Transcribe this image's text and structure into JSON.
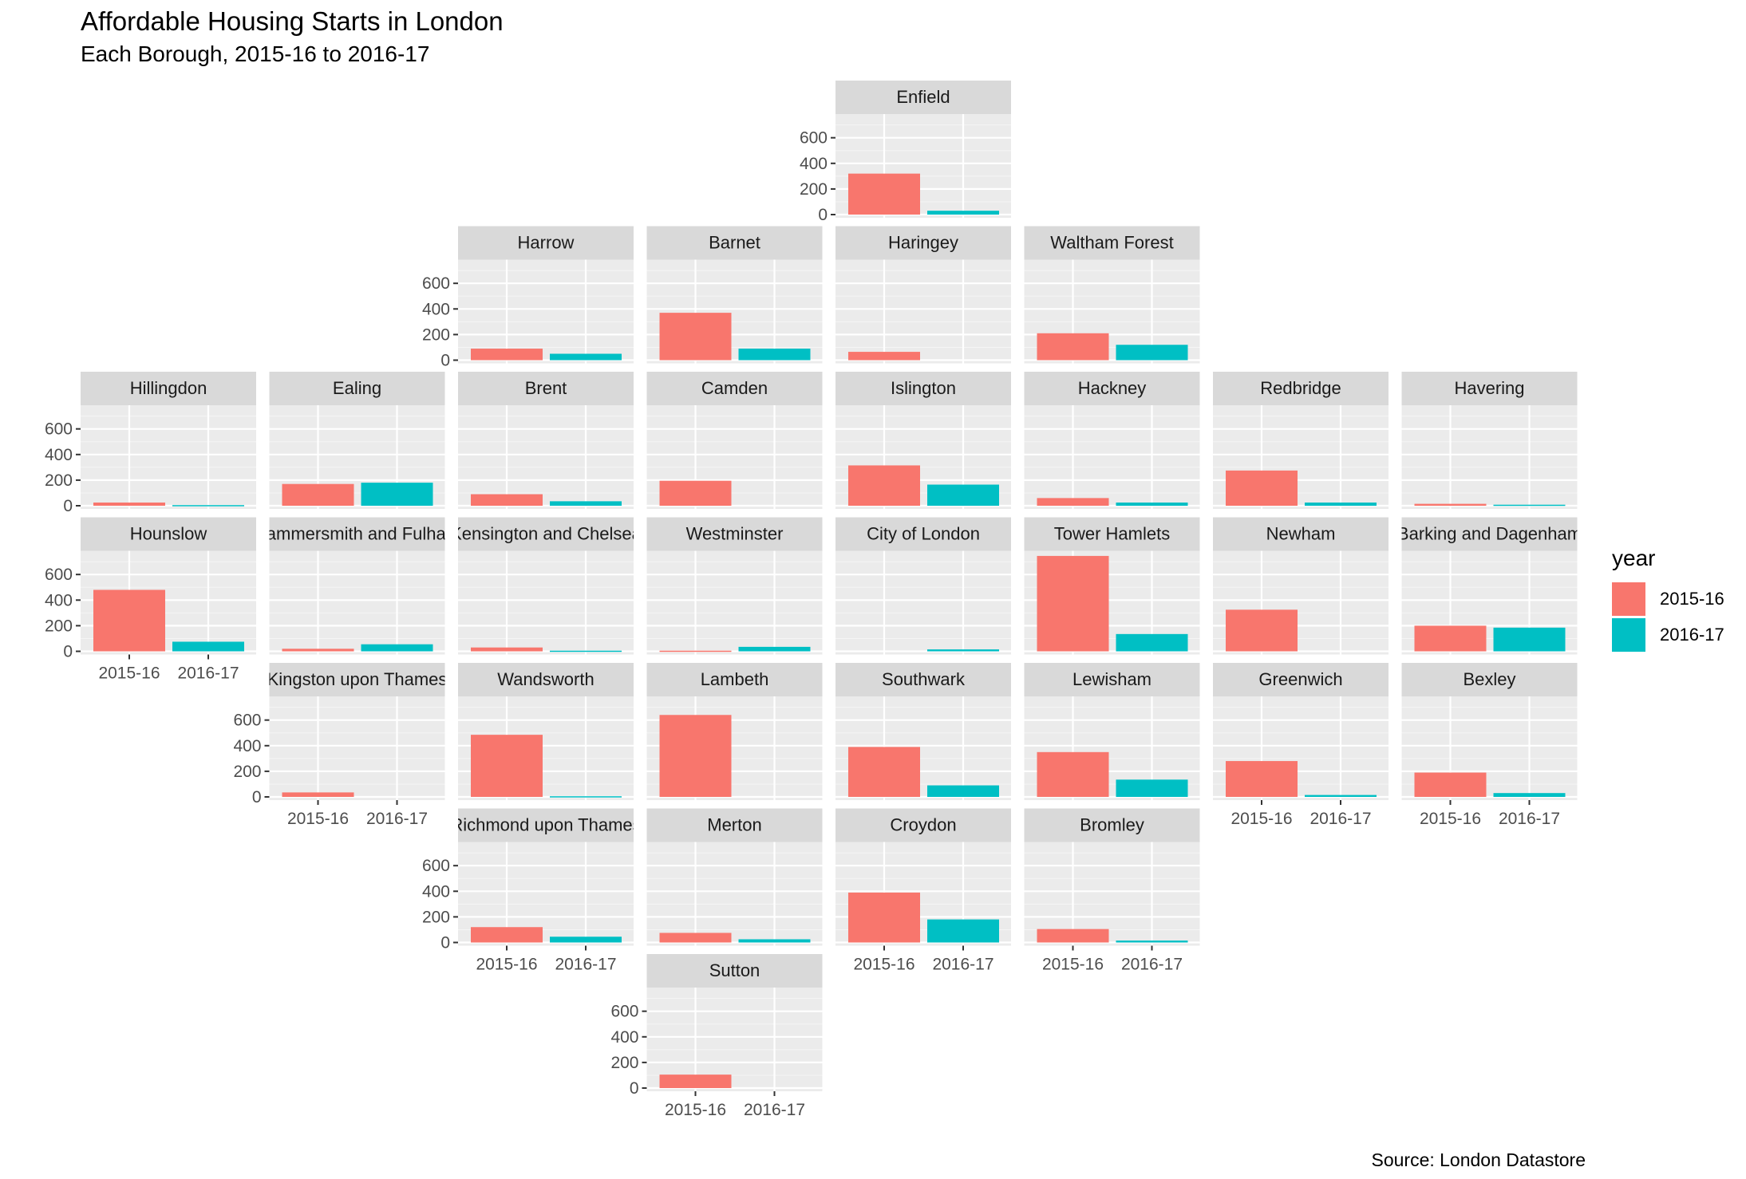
{
  "chart_data": {
    "type": "bar",
    "title": "Affordable Housing Starts in London",
    "subtitle": "Each Borough, 2015-16 to 2016-17",
    "caption": "Source: London Datastore",
    "categories": [
      "2015-16",
      "2016-17"
    ],
    "legend": {
      "title": "year",
      "position": "right",
      "items": [
        {
          "label": "2015-16",
          "color": "#F8766D"
        },
        {
          "label": "2016-17",
          "color": "#00BFC4"
        }
      ]
    },
    "ylim": [
      0,
      760
    ],
    "yticks": [
      0,
      200,
      400,
      600
    ],
    "grid": true,
    "layout": "geofacet",
    "facets": [
      {
        "name": "Enfield",
        "values": [
          320,
          30
        ]
      },
      {
        "name": "Harrow",
        "values": [
          90,
          50
        ]
      },
      {
        "name": "Barnet",
        "values": [
          370,
          90
        ]
      },
      {
        "name": "Haringey",
        "values": [
          65,
          0
        ]
      },
      {
        "name": "Waltham Forest",
        "values": [
          210,
          120
        ]
      },
      {
        "name": "Hillingdon",
        "values": [
          25,
          5
        ]
      },
      {
        "name": "Ealing",
        "values": [
          170,
          180
        ]
      },
      {
        "name": "Brent",
        "values": [
          90,
          35
        ]
      },
      {
        "name": "Camden",
        "values": [
          195,
          0
        ]
      },
      {
        "name": "Islington",
        "values": [
          315,
          165
        ]
      },
      {
        "name": "Hackney",
        "values": [
          60,
          25
        ]
      },
      {
        "name": "Redbridge",
        "values": [
          275,
          25
        ]
      },
      {
        "name": "Havering",
        "values": [
          15,
          8
        ]
      },
      {
        "name": "Hounslow",
        "values": [
          480,
          75
        ]
      },
      {
        "name": "Hammersmith and Fulham",
        "values": [
          20,
          55
        ]
      },
      {
        "name": "Kensington and Chelsea",
        "values": [
          30,
          5
        ]
      },
      {
        "name": "Westminster",
        "values": [
          5,
          35
        ]
      },
      {
        "name": "City of London",
        "values": [
          0,
          15
        ]
      },
      {
        "name": "Tower Hamlets",
        "values": [
          745,
          135
        ]
      },
      {
        "name": "Newham",
        "values": [
          325,
          0
        ]
      },
      {
        "name": "Barking and Dagenham",
        "values": [
          200,
          185
        ]
      },
      {
        "name": "Kingston upon Thames",
        "values": [
          35,
          0
        ]
      },
      {
        "name": "Wandsworth",
        "values": [
          485,
          5
        ]
      },
      {
        "name": "Lambeth",
        "values": [
          640,
          0
        ]
      },
      {
        "name": "Southwark",
        "values": [
          390,
          90
        ]
      },
      {
        "name": "Lewisham",
        "values": [
          350,
          135
        ]
      },
      {
        "name": "Greenwich",
        "values": [
          280,
          15
        ]
      },
      {
        "name": "Bexley",
        "values": [
          190,
          30
        ]
      },
      {
        "name": "Richmond upon Thames",
        "values": [
          120,
          45
        ]
      },
      {
        "name": "Merton",
        "values": [
          75,
          25
        ]
      },
      {
        "name": "Croydon",
        "values": [
          390,
          180
        ]
      },
      {
        "name": "Bromley",
        "values": [
          105,
          15
        ]
      },
      {
        "name": "Sutton",
        "values": [
          105,
          0
        ]
      }
    ]
  }
}
